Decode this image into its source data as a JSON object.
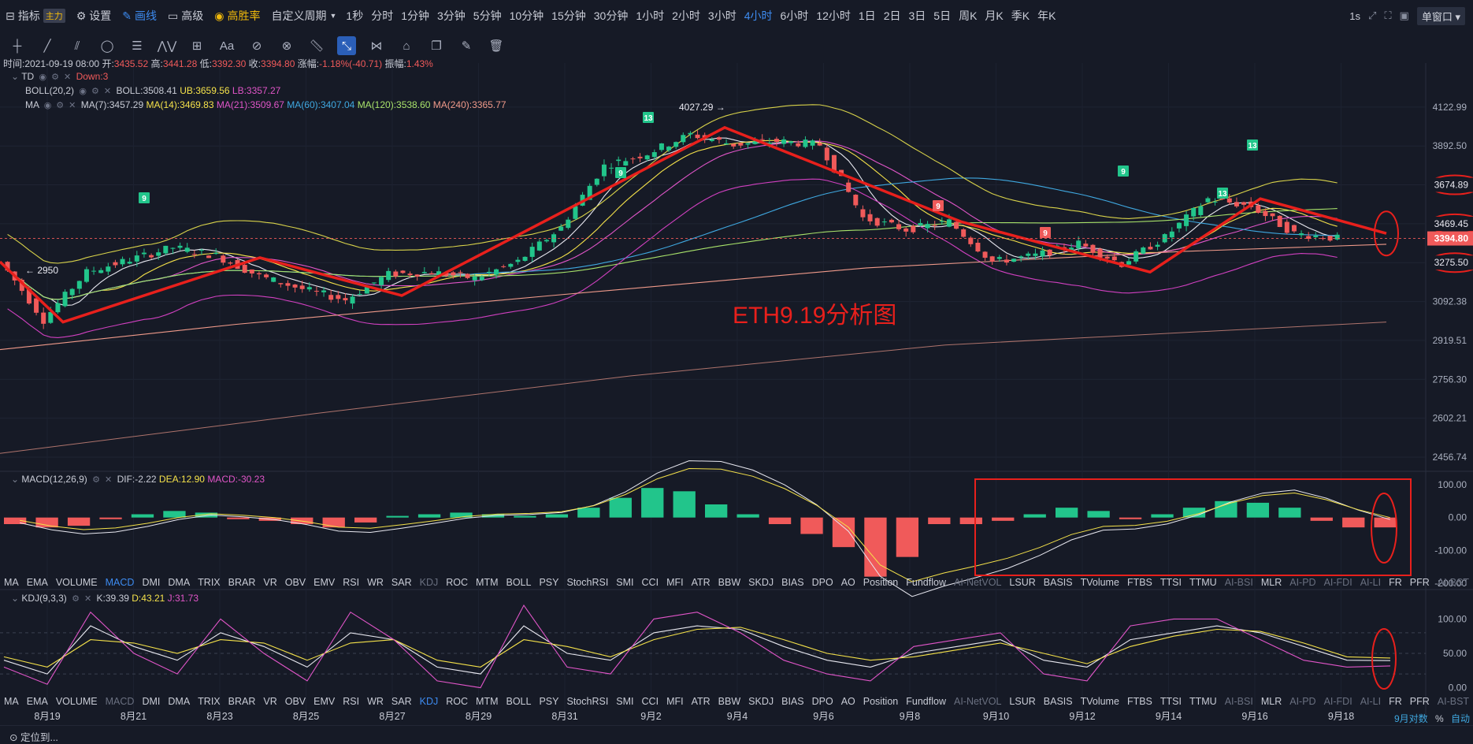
{
  "toolbar": {
    "indicators": "指标",
    "main_badge": "主力",
    "settings": "设置",
    "draw": "画线",
    "advanced": "高级",
    "win_rate": "高胜率",
    "custom_period": "自定义周期",
    "periods": [
      "1秒",
      "分时",
      "1分钟",
      "3分钟",
      "5分钟",
      "10分钟",
      "15分钟",
      "30分钟",
      "1小时",
      "2小时",
      "3小时",
      "4小时",
      "6小时",
      "12小时",
      "1日",
      "2日",
      "3日",
      "5日",
      "周K",
      "月K",
      "季K",
      "年K"
    ],
    "active_period": "4小时",
    "right_interval": "1s",
    "window_mode": "单窗口"
  },
  "ohlc": {
    "time": "时间:2021-09-19 08:00",
    "open_label": "开:",
    "open": "3435.52",
    "high_label": "高:",
    "high": "3441.28",
    "low_label": "低:",
    "low": "3392.30",
    "close_label": "收:",
    "close": "3394.80",
    "change_label": "涨幅:",
    "change": "-1.18%(-40.71)",
    "amp_label": "振幅:",
    "amp": "1.43%"
  },
  "td": {
    "name": "TD",
    "value": "Down:3"
  },
  "boll": {
    "name": "BOLL(20,2)",
    "boll": "BOLL:3508.41",
    "ub": "UB:3659.56",
    "lb": "LB:3357.27"
  },
  "ma": {
    "name": "MA",
    "ma7": "MA(7):3457.29",
    "ma14": "MA(14):3469.83",
    "ma21": "MA(21):3509.67",
    "ma60": "MA(60):3407.04",
    "ma120": "MA(120):3538.60",
    "ma240": "MA(240):3365.77"
  },
  "macd_legend": {
    "name": "MACD(12,26,9)",
    "dif": "DIF:-2.22",
    "dea": "DEA:12.90",
    "macd": "MACD:-30.23"
  },
  "kdj_legend": {
    "name": "KDJ(9,3,3)",
    "k": "K:39.39",
    "d": "D:43.21",
    "j": "J:31.73"
  },
  "tabs": [
    "MA",
    "EMA",
    "VOLUME",
    "MACD",
    "DMI",
    "DMA",
    "TRIX",
    "BRAR",
    "VR",
    "OBV",
    "EMV",
    "RSI",
    "WR",
    "SAR",
    "KDJ",
    "ROC",
    "MTM",
    "BOLL",
    "PSY",
    "StochRSI",
    "SMI",
    "CCI",
    "MFI",
    "ATR",
    "BBW",
    "SKDJ",
    "BIAS",
    "DPO",
    "AO",
    "Position",
    "Fundflow",
    "AI-NetVOL",
    "LSUR",
    "BASIS",
    "TVolume",
    "FTBS",
    "TTSI",
    "TTMU",
    "AI-BSI",
    "MLR",
    "AI-PD",
    "AI-FDI",
    "AI-LI",
    "FR",
    "PFR",
    "AI-BST"
  ],
  "tabs_dim": [
    "AI-NetVOL",
    "AI-BSI",
    "AI-PD",
    "AI-FDI",
    "AI-LI",
    "AI-BST"
  ],
  "tabs_active_row1": "MACD",
  "tabs_active_row2": "KDJ",
  "bottom": {
    "locate": "定位到...",
    "right_label": "9月对数",
    "pct": "%",
    "auto": "自动"
  },
  "colors": {
    "up": "#22c58b",
    "down": "#f05a5a",
    "annotation": "#e8201c",
    "accent": "#3d8bf0"
  },
  "chart_data": [
    {
      "type": "candlestick",
      "title": "ETH9.19分析图",
      "interval": "4小时",
      "x_ticks": [
        "8月19",
        "8月21",
        "8月23",
        "8月25",
        "8月27",
        "8月29",
        "8月31",
        "9月2",
        "9月4",
        "9月6",
        "9月8",
        "9月10",
        "9月12",
        "9月14",
        "9月16",
        "9月18"
      ],
      "y_ticks": [
        4122.99,
        3892.5,
        3674.89,
        3469.45,
        3275.5,
        3092.38,
        2919.51,
        2756.3,
        2602.21,
        2456.74
      ],
      "current_price": "3394.80",
      "price_labels": [
        "3674.89",
        "3469.45",
        "3394.80",
        "3275.50"
      ],
      "annotations": {
        "high": "4027.29 →",
        "low": "← 2950"
      },
      "td_labels": [
        "9",
        "9",
        "13",
        "13",
        "9",
        "9",
        "9",
        "13"
      ],
      "close_path": [
        [
          "8月19",
          3280
        ],
        [
          "8月20",
          3010
        ],
        [
          "8月21",
          3230
        ],
        [
          "8月22",
          3290
        ],
        [
          "8月23",
          3350
        ],
        [
          "8月24",
          3310
        ],
        [
          "8月25",
          3210
        ],
        [
          "8月26",
          3150
        ],
        [
          "8月27",
          3100
        ],
        [
          "8月28",
          3220
        ],
        [
          "8月29",
          3230
        ],
        [
          "8月30",
          3200
        ],
        [
          "8月31",
          3280
        ],
        [
          "9月1",
          3450
        ],
        [
          "9月2",
          3780
        ],
        [
          "9月3",
          3850
        ],
        [
          "9月4",
          3960
        ],
        [
          "9月5",
          3900
        ],
        [
          "9月6",
          3920
        ],
        [
          "9月7",
          3900
        ],
        [
          "9月8",
          3500
        ],
        [
          "9月9",
          3440
        ],
        [
          "9月10",
          3480
        ],
        [
          "9月11",
          3280
        ],
        [
          "9月12",
          3310
        ],
        [
          "9月13",
          3370
        ],
        [
          "9月14",
          3270
        ],
        [
          "9月15",
          3400
        ],
        [
          "9月16",
          3600
        ],
        [
          "9月17",
          3560
        ],
        [
          "9月18",
          3420
        ],
        [
          "9月19",
          3394.8
        ]
      ]
    },
    {
      "type": "histogram",
      "name": "MACD(12,26,9)",
      "y_ticks": [
        100.0,
        0.0,
        -100.0,
        -200.0
      ],
      "values": [
        -20,
        -30,
        -25,
        -5,
        10,
        20,
        15,
        -5,
        -10,
        -20,
        -30,
        -15,
        5,
        10,
        15,
        10,
        5,
        10,
        30,
        60,
        90,
        80,
        40,
        10,
        -20,
        -50,
        -90,
        -180,
        -120,
        -20,
        -20,
        -10,
        10,
        30,
        20,
        -5,
        10,
        30,
        50,
        45,
        30,
        -10,
        -30,
        -30
      ]
    },
    {
      "type": "line",
      "name": "KDJ(9,3,3)",
      "y_ticks": [
        100.0,
        50.0,
        0.0
      ],
      "series": [
        {
          "name": "K",
          "values": [
            40,
            20,
            90,
            60,
            40,
            80,
            60,
            30,
            80,
            70,
            30,
            20,
            90,
            50,
            40,
            80,
            90,
            85,
            60,
            40,
            30,
            50,
            60,
            70,
            40,
            30,
            70,
            80,
            90,
            80,
            60,
            40,
            39.39
          ]
        },
        {
          "name": "D",
          "values": [
            45,
            30,
            70,
            65,
            50,
            70,
            65,
            40,
            65,
            70,
            40,
            30,
            70,
            60,
            45,
            70,
            85,
            88,
            70,
            50,
            40,
            45,
            55,
            65,
            50,
            35,
            60,
            75,
            85,
            82,
            65,
            45,
            43.21
          ]
        },
        {
          "name": "J",
          "values": [
            30,
            5,
            110,
            50,
            20,
            100,
            50,
            10,
            110,
            70,
            10,
            0,
            120,
            30,
            20,
            100,
            110,
            80,
            40,
            20,
            10,
            60,
            70,
            80,
            20,
            10,
            90,
            100,
            100,
            70,
            40,
            30,
            31.73
          ]
        }
      ]
    }
  ]
}
